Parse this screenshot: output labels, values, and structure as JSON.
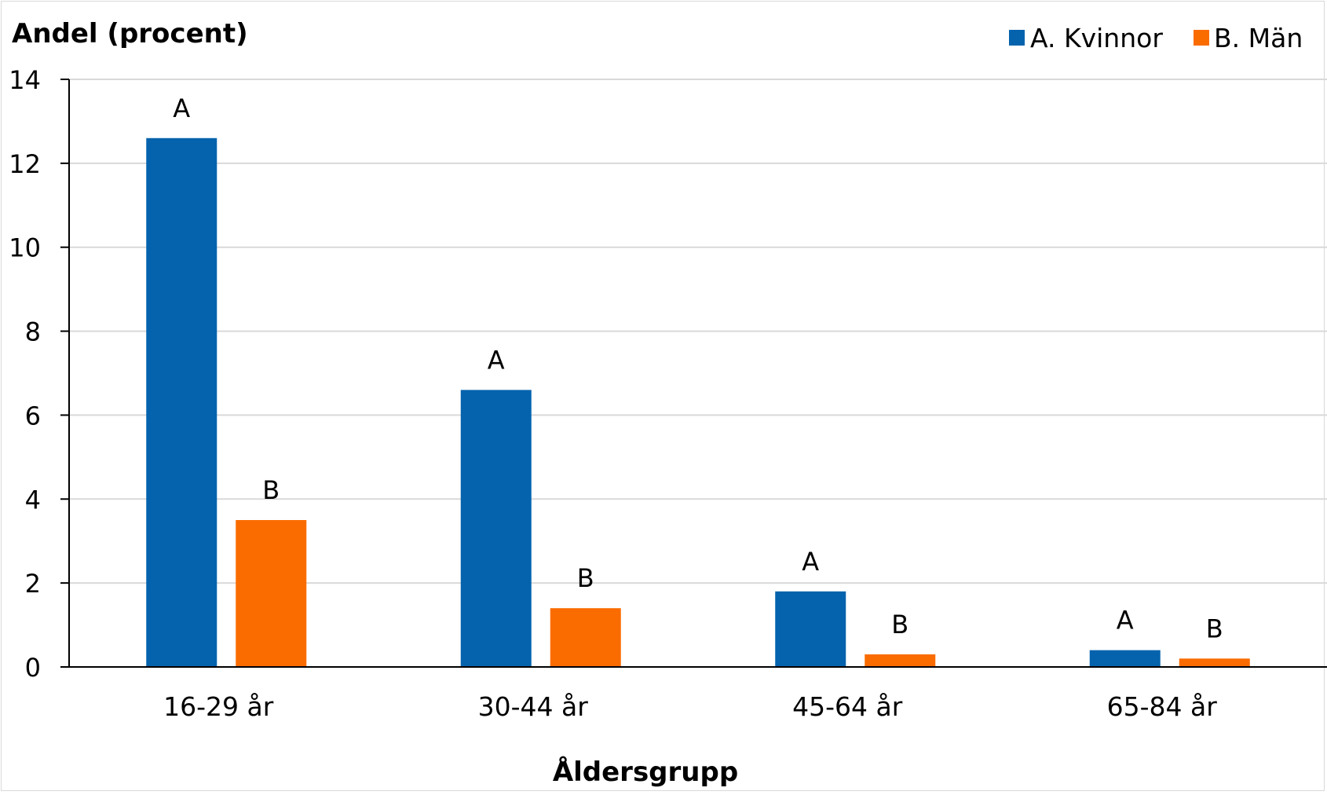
{
  "chart_data": {
    "type": "bar",
    "ylabel": "Andel (procent)",
    "xlabel": "Åldersgrupp",
    "categories": [
      "16-29 år",
      "30-44 år",
      "45-64 år",
      "65-84 år"
    ],
    "ylim": [
      0,
      14
    ],
    "yticks": [
      "0",
      "2",
      "4",
      "6",
      "8",
      "10",
      "12",
      "14"
    ],
    "grid": true,
    "legend_position": "top-right",
    "series": [
      {
        "name": "A. Kvinnor",
        "bar_label": "A",
        "color": "#0563ad",
        "values": [
          12.6,
          6.6,
          1.8,
          0.4
        ]
      },
      {
        "name": "B. Män",
        "bar_label": "B",
        "color": "#fa6c00",
        "values": [
          3.5,
          1.4,
          0.3,
          0.2
        ]
      }
    ]
  }
}
